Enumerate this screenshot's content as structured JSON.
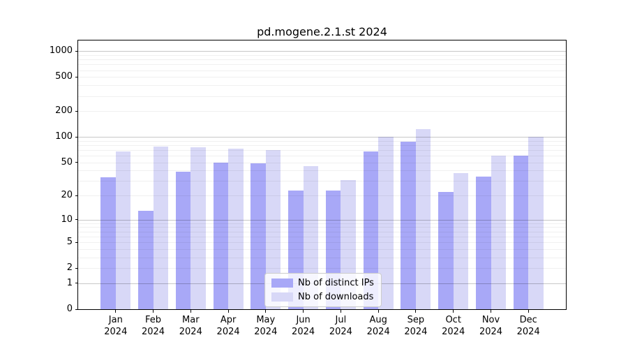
{
  "title": "pd.mogene.2.1.st 2024",
  "chart_data": {
    "type": "bar",
    "title": "pd.mogene.2.1.st 2024",
    "categories": [
      "Jan",
      "Feb",
      "Mar",
      "Apr",
      "May",
      "Jun",
      "Jul",
      "Aug",
      "Sep",
      "Oct",
      "Nov",
      "Dec"
    ],
    "year_label": "2024",
    "series": [
      {
        "name": "Nb of distinct IPs",
        "key": "distinct-ips",
        "color": "#a8a8f7",
        "values": [
          33,
          13,
          39,
          50,
          49,
          23,
          23,
          67,
          87,
          22,
          34,
          60
        ]
      },
      {
        "name": "Nb of downloads",
        "key": "downloads",
        "color": "#d8d8f7",
        "values": [
          67,
          77,
          75,
          72,
          70,
          45,
          31,
          100,
          123,
          37,
          60,
          100
        ]
      }
    ],
    "yscale": "log10(x+1)",
    "y_ticks": [
      0,
      1,
      2,
      5,
      10,
      20,
      50,
      100,
      200,
      500,
      1000
    ],
    "ylim": [
      0,
      1330
    ],
    "grid": true,
    "legend_position": "lower center"
  },
  "colors": {
    "major_grid": "#c8c8c8",
    "minor_grid": "#efefef",
    "spine": "#000000",
    "text": "#000000"
  }
}
